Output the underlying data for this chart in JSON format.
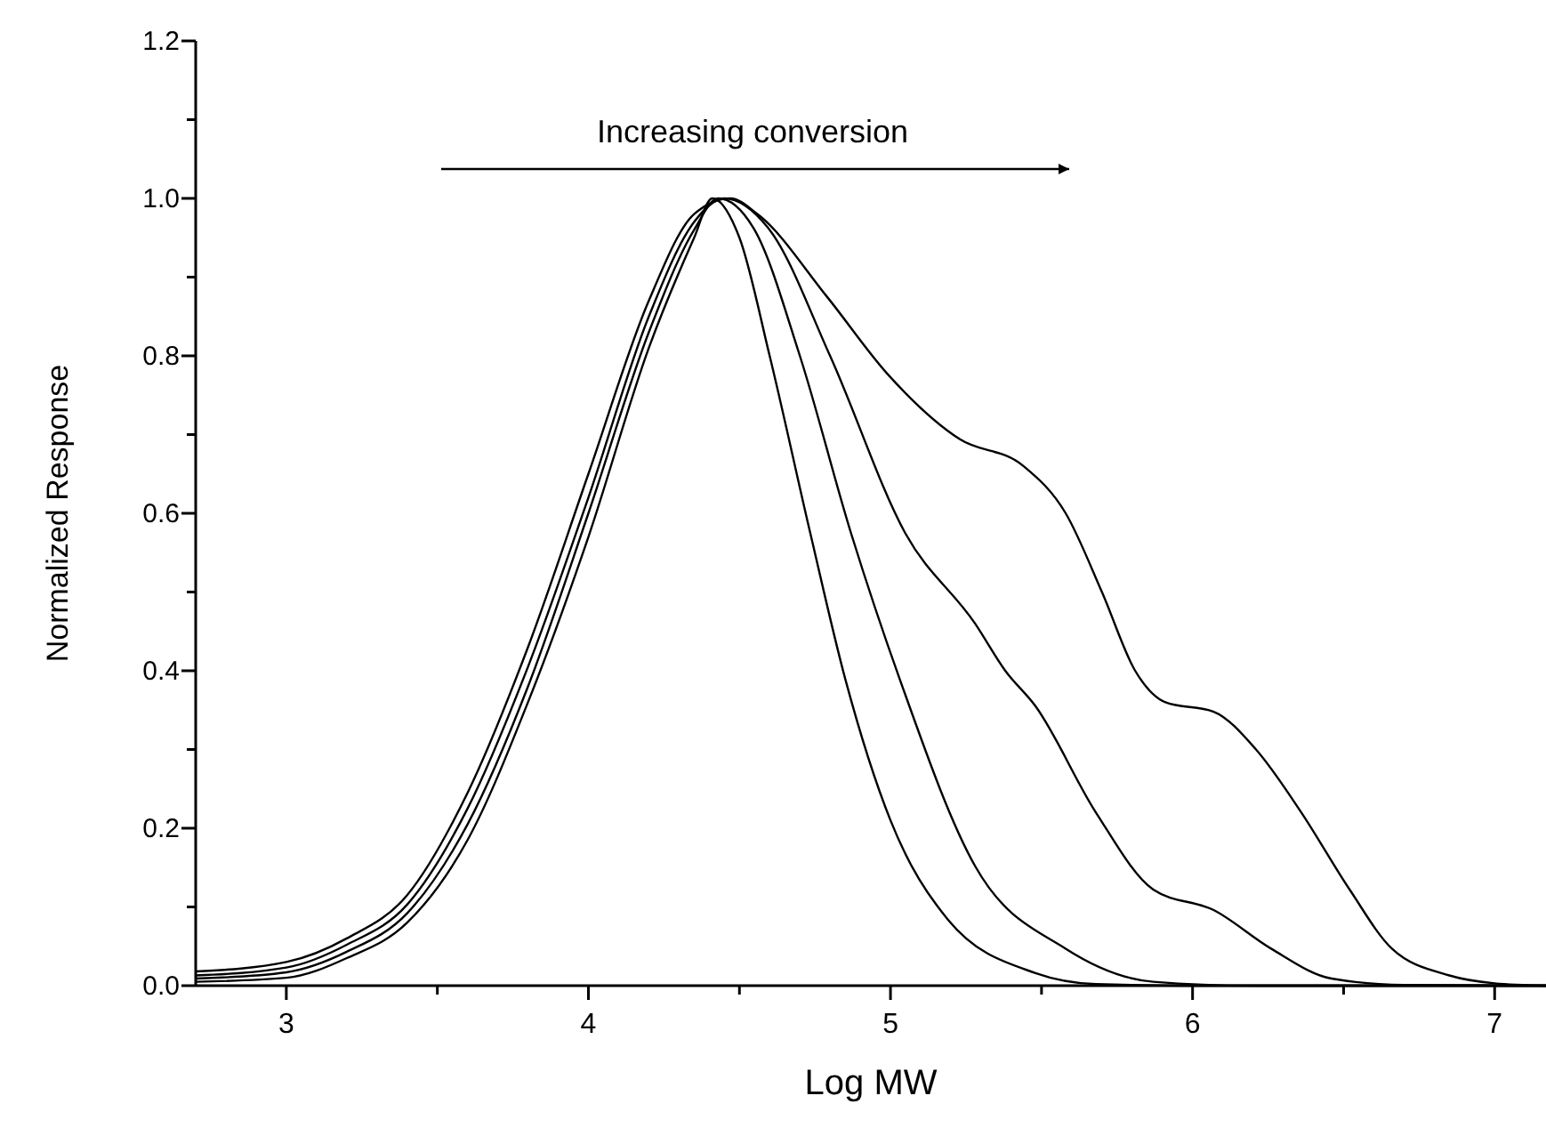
{
  "chart_data": {
    "type": "line",
    "xlabel": "Log MW",
    "ylabel": "Normalized Response",
    "annotations": [
      "Increasing conversion"
    ],
    "xlim": [
      2.7,
      7.17
    ],
    "ylim": [
      0,
      1.2
    ],
    "xticks": [
      3,
      {
        "value": 3.5,
        "label": null
      },
      4,
      {
        "value": 4.5,
        "label": null
      },
      5,
      {
        "value": 5.5,
        "label": null
      },
      6,
      {
        "value": 6.5,
        "label": null
      },
      7
    ],
    "yticks": [
      {
        "value": 0,
        "label": "0.0"
      },
      {
        "value": 0.1,
        "label": null
      },
      {
        "value": 0.2,
        "label": "0.2"
      },
      {
        "value": 0.3,
        "label": null
      },
      {
        "value": 0.4,
        "label": "0.4"
      },
      {
        "value": 0.5,
        "label": null
      },
      {
        "value": 0.6,
        "label": "0.6"
      },
      {
        "value": 0.7,
        "label": null
      },
      {
        "value": 0.8,
        "label": "0.8"
      },
      {
        "value": 0.9,
        "label": null
      },
      {
        "value": 1.0,
        "label": "1.0"
      },
      {
        "value": 1.1,
        "label": null
      },
      {
        "value": 1.2,
        "label": "1.2"
      }
    ],
    "grid": false,
    "marker": "none",
    "line_style": "solid",
    "series": [
      {
        "color": "#000000",
        "x": [
          2.7,
          3.0,
          3.2,
          3.4,
          3.6,
          3.8,
          4.0,
          4.2,
          4.35,
          4.41,
          4.5,
          4.6,
          4.735,
          4.85,
          5.0,
          5.19,
          5.48,
          5.68,
          6.0,
          7.17
        ],
        "values": [
          0.005,
          0.01,
          0.035,
          0.08,
          0.185,
          0.36,
          0.57,
          0.81,
          0.95,
          1.0,
          0.95,
          0.8,
          0.574,
          0.39,
          0.21,
          0.084,
          0.016,
          0.002,
          0,
          0
        ]
      },
      {
        "color": "#000000",
        "x": [
          2.7,
          3.0,
          3.2,
          3.4,
          3.6,
          3.8,
          4.0,
          4.2,
          4.35,
          4.43,
          4.55,
          4.7,
          4.87,
          5.03,
          5.28,
          5.58,
          5.87,
          6.2,
          7.17
        ],
        "values": [
          0.009,
          0.017,
          0.043,
          0.092,
          0.205,
          0.38,
          0.6,
          0.83,
          0.96,
          1.0,
          0.96,
          0.8,
          0.574,
          0.39,
          0.152,
          0.047,
          0.005,
          0,
          0
        ]
      },
      {
        "color": "#000000",
        "x": [
          2.7,
          3.0,
          3.2,
          3.4,
          3.6,
          3.8,
          4.0,
          4.2,
          4.35,
          4.45,
          4.6,
          4.8,
          5.05,
          5.28,
          5.38,
          5.48,
          5.68,
          5.87,
          6.07,
          6.26,
          6.46,
          6.7,
          7.17
        ],
        "values": [
          0.013,
          0.023,
          0.052,
          0.103,
          0.225,
          0.405,
          0.62,
          0.85,
          0.97,
          1.0,
          0.96,
          0.8,
          0.574,
          0.46,
          0.4,
          0.355,
          0.22,
          0.122,
          0.096,
          0.047,
          0.009,
          0.001,
          0
        ]
      },
      {
        "color": "#000000",
        "x": [
          2.7,
          3.0,
          3.2,
          3.4,
          3.6,
          3.8,
          4.0,
          4.2,
          4.35,
          4.47,
          4.56,
          4.79,
          4.99,
          5.23,
          5.44,
          5.58,
          5.7,
          5.81,
          5.91,
          6.07,
          6.21,
          6.36,
          6.52,
          6.66,
          6.85,
          7.0,
          7.17
        ],
        "values": [
          0.018,
          0.03,
          0.06,
          0.115,
          0.245,
          0.43,
          0.65,
          0.87,
          0.98,
          1.0,
          0.98,
          0.875,
          0.777,
          0.694,
          0.66,
          0.6,
          0.5,
          0.4,
          0.36,
          0.348,
          0.3,
          0.22,
          0.122,
          0.047,
          0.013,
          0.003,
          0
        ]
      }
    ]
  }
}
